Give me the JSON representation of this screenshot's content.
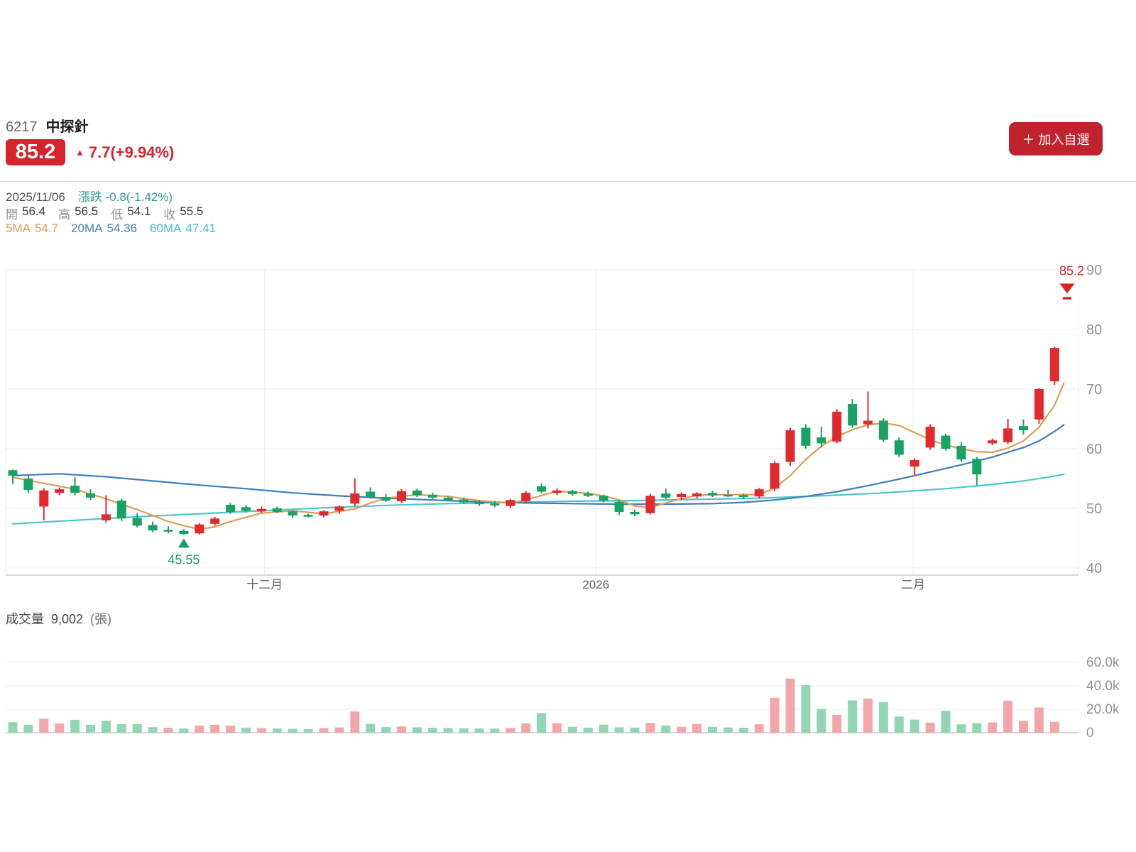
{
  "header": {
    "stock_code": "6217",
    "stock_name": "中探針",
    "price": "85.2",
    "up_arrow": "▲",
    "change_text": "7.7(+9.94%)",
    "add_watchlist_label": "＋ 加入自選"
  },
  "info": {
    "date": "2025/11/06",
    "change_label": "漲跌",
    "change_value": "-0.8(-1.42%)",
    "open_label": "開",
    "open": "56.4",
    "high_label": "高",
    "high": "56.5",
    "low_label": "低",
    "low": "54.1",
    "close_label": "收",
    "close": "55.5",
    "ma5_label": "5MA",
    "ma5": "54.7",
    "ma20_label": "20MA",
    "ma20": "54.36",
    "ma60_label": "60MA",
    "ma60": "47.41"
  },
  "volume_header": {
    "label": "成交量",
    "value": "9,002",
    "unit": "(張)"
  },
  "chart_data": {
    "type": "candlestick+volume",
    "title": "6217 中探針 daily K-line",
    "price_axis": {
      "min": 40,
      "max": 90,
      "ticks": [
        90,
        80,
        70,
        60,
        50,
        40
      ]
    },
    "volume_axis": {
      "ticks": [
        {
          "label": "60.0k",
          "value": 60
        },
        {
          "label": "40.0k",
          "value": 40
        },
        {
          "label": "20.0k",
          "value": 20
        },
        {
          "label": "0",
          "value": 0
        }
      ]
    },
    "x_axis": [
      {
        "label": "十二月",
        "index": 16.2
      },
      {
        "label": "2026",
        "index": 37.5
      },
      {
        "label": "二月",
        "index": 57.9
      }
    ],
    "colors": {
      "up": "#e02a2e",
      "down": "#18a263",
      "vol_up": "#f3a6aa",
      "vol_down": "#92d5b5",
      "ma5": "#e39b55",
      "ma20": "#3f7cba",
      "ma60": "#49c8c8",
      "accent_red": "#d6242c",
      "annotation_green": "#1f9a6e"
    },
    "candles": [
      [
        56.4,
        56.5,
        54.1,
        55.5,
        9.0
      ],
      [
        55.0,
        55.6,
        52.6,
        53.1,
        6.7
      ],
      [
        50.3,
        53.4,
        48.0,
        53.0,
        12.0
      ],
      [
        52.6,
        53.5,
        52.2,
        53.2,
        7.9
      ],
      [
        53.8,
        55.2,
        52.2,
        52.6,
        11.0
      ],
      [
        52.5,
        53.2,
        51.4,
        51.8,
        6.7
      ],
      [
        48.0,
        52.2,
        47.6,
        49.0,
        10.3
      ],
      [
        51.3,
        51.6,
        47.9,
        48.3,
        7.3
      ],
      [
        48.4,
        49.2,
        46.8,
        47.1,
        7.3
      ],
      [
        47.2,
        47.8,
        46.0,
        46.3,
        4.8
      ],
      [
        46.4,
        47.0,
        45.8,
        46.1,
        4.2
      ],
      [
        46.2,
        46.5,
        45.55,
        45.7,
        3.6
      ],
      [
        45.8,
        47.5,
        45.6,
        47.3,
        6.1
      ],
      [
        47.4,
        48.6,
        47.1,
        48.3,
        6.7
      ],
      [
        50.6,
        50.9,
        49.1,
        49.4,
        6.1
      ],
      [
        50.2,
        50.5,
        49.3,
        49.6,
        4.3
      ],
      [
        49.5,
        50.3,
        49.2,
        49.9,
        4.0
      ],
      [
        50.0,
        50.3,
        49.2,
        49.4,
        3.7
      ],
      [
        49.5,
        49.7,
        48.4,
        48.8,
        3.4
      ],
      [
        48.9,
        49.1,
        48.5,
        48.7,
        3.2
      ],
      [
        48.8,
        49.7,
        48.5,
        49.5,
        3.9
      ],
      [
        49.6,
        50.5,
        49.1,
        50.3,
        4.5
      ],
      [
        50.8,
        55.0,
        50.4,
        52.5,
        18.2
      ],
      [
        52.8,
        53.5,
        51.6,
        51.9,
        7.6
      ],
      [
        51.9,
        52.4,
        51.1,
        51.3,
        4.8
      ],
      [
        51.2,
        53.2,
        50.9,
        52.9,
        5.4
      ],
      [
        53.0,
        53.3,
        51.9,
        52.2,
        4.6
      ],
      [
        52.3,
        52.6,
        51.5,
        51.8,
        4.2
      ],
      [
        51.8,
        52.1,
        51.2,
        51.4,
        4.0
      ],
      [
        51.5,
        51.8,
        50.7,
        51.0,
        3.8
      ],
      [
        51.0,
        51.4,
        50.4,
        50.7,
        3.6
      ],
      [
        50.8,
        51.2,
        50.2,
        50.5,
        3.5
      ],
      [
        50.4,
        51.6,
        50.1,
        51.4,
        4.1
      ],
      [
        51.2,
        52.9,
        50.8,
        52.6,
        8.0
      ],
      [
        53.7,
        54.2,
        52.5,
        52.8,
        16.8
      ],
      [
        52.6,
        53.3,
        52.2,
        53.0,
        8.1
      ],
      [
        52.9,
        53.1,
        52.1,
        52.4,
        5.0
      ],
      [
        52.5,
        52.8,
        51.9,
        52.1,
        4.3
      ],
      [
        52.1,
        52.3,
        51.0,
        51.3,
        6.9
      ],
      [
        51.1,
        51.4,
        48.9,
        49.4,
        4.6
      ],
      [
        49.4,
        49.8,
        48.7,
        49.0,
        4.4
      ],
      [
        49.2,
        52.4,
        49.0,
        52.1,
        8.3
      ],
      [
        52.5,
        53.3,
        51.5,
        51.8,
        6.1
      ],
      [
        51.9,
        52.7,
        51.4,
        52.4,
        5.1
      ],
      [
        52.0,
        52.7,
        51.7,
        52.5,
        7.5
      ],
      [
        52.6,
        52.9,
        51.9,
        52.2,
        5.0
      ],
      [
        52.3,
        53.1,
        51.9,
        52.1,
        4.5
      ],
      [
        52.2,
        52.5,
        51.6,
        51.9,
        4.2
      ],
      [
        52.0,
        53.4,
        51.7,
        53.2,
        7.2
      ],
      [
        53.3,
        57.9,
        52.9,
        57.6,
        29.8
      ],
      [
        57.8,
        63.5,
        57.1,
        63.1,
        46.2
      ],
      [
        63.5,
        64.1,
        60.0,
        60.5,
        40.6
      ],
      [
        61.9,
        63.7,
        60.2,
        60.9,
        20.4
      ],
      [
        61.2,
        66.6,
        60.9,
        66.2,
        15.3
      ],
      [
        67.5,
        68.3,
        63.5,
        63.9,
        27.6
      ],
      [
        64.1,
        69.6,
        63.4,
        64.7,
        29.2
      ],
      [
        64.7,
        65.1,
        61.1,
        61.5,
        26.1
      ],
      [
        61.4,
        61.9,
        58.6,
        59.0,
        13.8
      ],
      [
        57.0,
        58.4,
        55.6,
        58.1,
        11.2
      ],
      [
        60.2,
        64.1,
        59.8,
        63.7,
        8.6
      ],
      [
        62.2,
        62.5,
        59.7,
        60.0,
        18.7
      ],
      [
        60.5,
        61.1,
        57.8,
        58.2,
        7.2
      ],
      [
        58.3,
        58.6,
        53.9,
        55.7,
        8.1
      ],
      [
        60.9,
        61.7,
        60.6,
        61.4,
        8.8
      ],
      [
        61.1,
        65.0,
        60.8,
        63.4,
        27.3
      ],
      [
        63.8,
        64.9,
        62.4,
        63.1,
        10.2
      ],
      [
        64.9,
        70.2,
        64.2,
        70.0,
        21.5
      ],
      [
        71.3,
        77.1,
        70.7,
        76.9,
        9.3
      ]
    ],
    "volume_color_overrides": {
      "6": "down",
      "10": "up",
      "14": "up",
      "58": "down",
      "65": "up"
    },
    "ma5": [
      [
        0,
        55.2
      ],
      [
        2,
        54.2
      ],
      [
        4,
        53.2
      ],
      [
        6,
        51.6
      ],
      [
        8,
        49.8
      ],
      [
        10,
        47.8
      ],
      [
        11,
        47.1
      ],
      [
        12,
        46.5
      ],
      [
        13,
        46.9
      ],
      [
        14,
        47.8
      ],
      [
        16,
        49.2
      ],
      [
        18,
        49.6
      ],
      [
        20,
        49.1
      ],
      [
        22,
        49.9
      ],
      [
        23,
        50.9
      ],
      [
        24,
        51.7
      ],
      [
        26,
        52.3
      ],
      [
        28,
        52.0
      ],
      [
        30,
        51.3
      ],
      [
        32,
        50.9
      ],
      [
        33,
        51.4
      ],
      [
        35,
        52.9
      ],
      [
        37,
        52.5
      ],
      [
        38,
        52.1
      ],
      [
        39,
        51.4
      ],
      [
        40,
        50.4
      ],
      [
        41,
        50.1
      ],
      [
        42,
        50.9
      ],
      [
        43,
        51.6
      ],
      [
        44,
        52.2
      ],
      [
        46,
        52.3
      ],
      [
        48,
        52.3
      ],
      [
        49,
        53.4
      ],
      [
        50,
        55.5
      ],
      [
        51,
        58.2
      ],
      [
        52,
        60.4
      ],
      [
        53,
        62.0
      ],
      [
        54,
        63.2
      ],
      [
        55,
        64.0
      ],
      [
        56,
        64.3
      ],
      [
        57,
        63.9
      ],
      [
        58,
        62.7
      ],
      [
        59,
        61.5
      ],
      [
        60,
        60.6
      ],
      [
        61,
        60.0
      ],
      [
        62,
        59.5
      ],
      [
        63,
        59.4
      ],
      [
        64,
        60.1
      ],
      [
        65,
        61.3
      ],
      [
        66,
        63.6
      ],
      [
        67,
        67.3
      ],
      [
        67.6,
        71.0
      ]
    ],
    "ma20": [
      [
        0,
        55.5
      ],
      [
        3,
        55.8
      ],
      [
        6,
        55.3
      ],
      [
        9,
        54.6
      ],
      [
        12,
        53.9
      ],
      [
        15,
        53.3
      ],
      [
        18,
        52.6
      ],
      [
        21,
        52.1
      ],
      [
        24,
        51.7
      ],
      [
        27,
        51.4
      ],
      [
        30,
        51.1
      ],
      [
        33,
        50.9
      ],
      [
        36,
        50.8
      ],
      [
        39,
        50.7
      ],
      [
        42,
        50.7
      ],
      [
        45,
        50.8
      ],
      [
        47,
        51.0
      ],
      [
        49,
        51.4
      ],
      [
        51,
        52.0
      ],
      [
        53,
        52.8
      ],
      [
        55,
        53.8
      ],
      [
        57,
        54.9
      ],
      [
        59,
        56.1
      ],
      [
        61,
        57.3
      ],
      [
        63,
        58.6
      ],
      [
        65,
        60.2
      ],
      [
        66,
        61.3
      ],
      [
        67,
        62.9
      ],
      [
        67.6,
        64.0
      ]
    ],
    "ma60": [
      [
        0,
        47.4
      ],
      [
        4,
        48.0
      ],
      [
        8,
        48.6
      ],
      [
        12,
        49.1
      ],
      [
        16,
        49.6
      ],
      [
        20,
        50.1
      ],
      [
        24,
        50.5
      ],
      [
        28,
        50.8
      ],
      [
        32,
        51.0
      ],
      [
        36,
        51.2
      ],
      [
        40,
        51.3
      ],
      [
        44,
        51.5
      ],
      [
        48,
        51.7
      ],
      [
        52,
        52.1
      ],
      [
        56,
        52.6
      ],
      [
        60,
        53.3
      ],
      [
        63,
        54.0
      ],
      [
        65,
        54.6
      ],
      [
        67,
        55.4
      ],
      [
        67.6,
        55.7
      ]
    ],
    "annotations": {
      "low_marker": {
        "candle_index": 11,
        "label": "45.55",
        "value": 45.55
      },
      "current_price_marker": {
        "label": "85.2",
        "value": 85.2
      }
    }
  }
}
